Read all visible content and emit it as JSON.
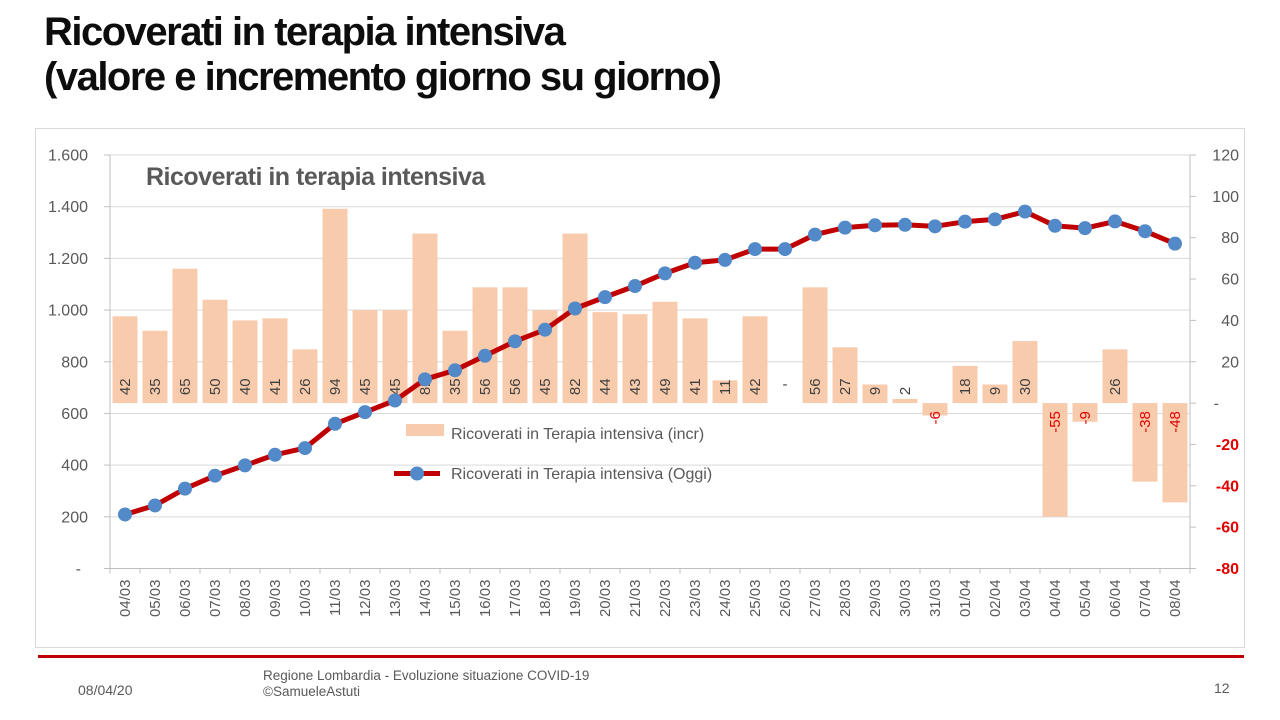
{
  "slide": {
    "title_line1": "Ricoverati in terapia intensiva",
    "title_line2": "(valore e incremento giorno su giorno)"
  },
  "footer": {
    "date": "08/04/20",
    "center_line1": "Regione Lombardia - Evoluzione situazione COVID-19",
    "center_line2": "©SamueleAstuti",
    "page_number": "12"
  },
  "chart_data": {
    "type": "bar",
    "combo": "bar+line",
    "title": "Ricoverati in terapia intensiva",
    "categories": [
      "04/03",
      "05/03",
      "06/03",
      "07/03",
      "08/03",
      "09/03",
      "10/03",
      "11/03",
      "12/03",
      "13/03",
      "14/03",
      "15/03",
      "16/03",
      "17/03",
      "18/03",
      "19/03",
      "20/03",
      "21/03",
      "22/03",
      "23/03",
      "24/03",
      "25/03",
      "26/03",
      "27/03",
      "28/03",
      "29/03",
      "30/03",
      "31/03",
      "01/04",
      "02/04",
      "03/04",
      "04/04",
      "05/04",
      "06/04",
      "07/04",
      "08/04"
    ],
    "series": [
      {
        "name": "Ricoverati in Terapia intensiva (incr)",
        "type": "bar",
        "axis": "right",
        "color": "#F8CBAD",
        "values": [
          42,
          35,
          65,
          50,
          40,
          41,
          26,
          94,
          45,
          45,
          82,
          35,
          56,
          56,
          45,
          82,
          44,
          43,
          49,
          41,
          11,
          42,
          0,
          56,
          27,
          9,
          2,
          -6,
          18,
          9,
          30,
          -55,
          -9,
          26,
          -38,
          -48
        ]
      },
      {
        "name": "Ricoverati in Terapia intensiva (Oggi)",
        "type": "line",
        "axis": "left",
        "color": "#C00000",
        "marker_color": "#5189C9",
        "values": [
          209,
          244,
          309,
          359,
          399,
          440,
          466,
          560,
          605,
          650,
          732,
          767,
          823,
          879,
          924,
          1006,
          1050,
          1093,
          1142,
          1183,
          1194,
          1236,
          1236,
          1292,
          1319,
          1328,
          1330,
          1324,
          1342,
          1351,
          1381,
          1326,
          1317,
          1343,
          1305,
          1257
        ]
      }
    ],
    "left_axis": {
      "min": 0,
      "max": 1600,
      "step": 200,
      "tick_labels": [
        "-",
        "200",
        "400",
        "600",
        "800",
        "1.000",
        "1.200",
        "1.400",
        "1.600"
      ]
    },
    "right_axis": {
      "min": -80,
      "max": 120,
      "step": 20,
      "tick_labels": [
        "-80",
        "-60",
        "-40",
        "-20",
        "-",
        "20",
        "40",
        "60",
        "80",
        "100",
        "120"
      ]
    },
    "zero_label": "-",
    "grid": true,
    "legend_position": "inside-left-middle",
    "colors": {
      "grid": "#D9D9D9",
      "axis_line": "#BFBFBF",
      "axis_text": "#595959",
      "negative_text": "#E00000",
      "bar_label_text": "#404040",
      "title_text": "#595959"
    }
  }
}
